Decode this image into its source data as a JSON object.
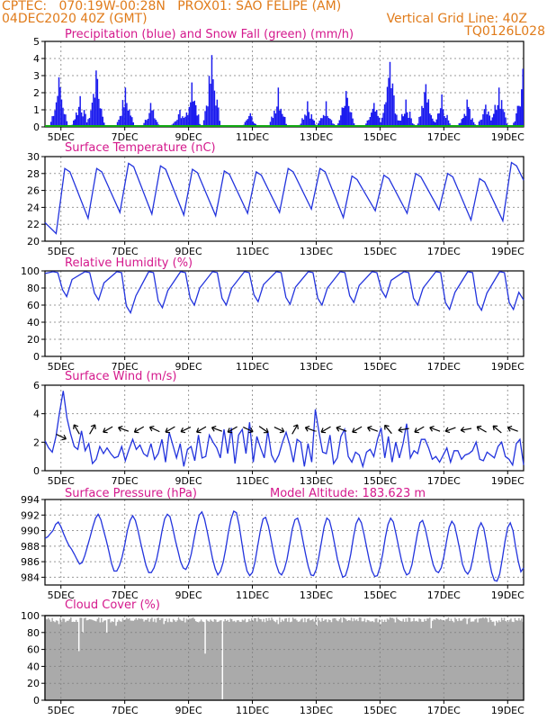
{
  "header": {
    "line1_left": "CPTEC:   070:19W-00:28N   PROX01: SAO FELIPE (AM)",
    "line2_left": "04DEC2020 40Z (GMT)",
    "line2_right": "Vertical Grid Line: 40Z",
    "line3_right": "TQ0126L028"
  },
  "colors": {
    "header": "#e07b1a",
    "title": "#d4188c",
    "precip": "#1a1aee",
    "snow": "#11aa11",
    "line": "#2233dd",
    "cloud": "#aaaaaa",
    "grid": "#999999",
    "arrow": "#000000"
  },
  "x_tick_labels": [
    "5DEC",
    "7DEC",
    "9DEC",
    "11DEC",
    "13DEC",
    "15DEC",
    "17DEC",
    "19DEC"
  ],
  "chart_data": [
    {
      "id": "precip",
      "type": "bar",
      "title": "Precipitation (blue) and Snow Fall (green) (mm/h)",
      "ylim": [
        0,
        5
      ],
      "yticks": [
        0,
        1,
        2,
        3,
        4,
        5
      ],
      "grid": true,
      "series": [
        {
          "name": "Precipitation",
          "color": "blue"
        },
        {
          "name": "Snow Fall",
          "color": "green"
        }
      ],
      "peaks": [
        {
          "day": 0.4,
          "value": 2.9
        },
        {
          "day": 1.1,
          "value": 1.8
        },
        {
          "day": 1.6,
          "value": 3.3
        },
        {
          "day": 2.5,
          "value": 2.3
        },
        {
          "day": 3.3,
          "value": 1.4
        },
        {
          "day": 4.2,
          "value": 1.0
        },
        {
          "day": 4.6,
          "value": 2.6
        },
        {
          "day": 5.2,
          "value": 4.2
        },
        {
          "day": 6.4,
          "value": 0.8
        },
        {
          "day": 7.3,
          "value": 2.3
        },
        {
          "day": 8.2,
          "value": 1.5
        },
        {
          "day": 8.8,
          "value": 1.5
        },
        {
          "day": 9.4,
          "value": 2.1
        },
        {
          "day": 10.3,
          "value": 1.4
        },
        {
          "day": 10.8,
          "value": 3.8
        },
        {
          "day": 11.3,
          "value": 1.6
        },
        {
          "day": 11.9,
          "value": 2.5
        },
        {
          "day": 12.4,
          "value": 1.9
        },
        {
          "day": 13.2,
          "value": 1.6
        },
        {
          "day": 13.8,
          "value": 1.3
        },
        {
          "day": 14.2,
          "value": 2.3
        },
        {
          "day": 14.9,
          "value": 2.2
        },
        {
          "day": 15.3,
          "value": 1.2
        },
        {
          "day": 16.2,
          "value": 0.8
        },
        {
          "day": 17.0,
          "value": 0.9
        }
      ]
    },
    {
      "id": "temp",
      "type": "line",
      "title": "Surface Temperature (nC)",
      "ylim": [
        20,
        30
      ],
      "yticks": [
        20,
        22,
        24,
        26,
        28,
        30
      ],
      "grid": true,
      "daily_max": [
        28.6,
        28.6,
        29.2,
        28.9,
        28.5,
        28.3,
        28.2,
        28.6,
        28.6,
        27.7,
        27.8,
        28.0,
        28.0,
        27.4,
        29.3
      ],
      "daily_min": [
        22.7,
        23.4,
        23.2,
        23.1,
        23.0,
        23.3,
        23.4,
        23.8,
        22.8,
        23.6,
        23.3,
        23.7,
        22.5,
        22.4,
        22.4
      ],
      "start": 22.2,
      "first_min": 20.9
    },
    {
      "id": "rh",
      "type": "line",
      "title": "Relative Humidity (%)",
      "ylim": [
        0,
        100
      ],
      "yticks": [
        0,
        20,
        40,
        60,
        80,
        100
      ],
      "grid": true,
      "daily_min": [
        70,
        66,
        51,
        57,
        60,
        60,
        64,
        61,
        60,
        63,
        69,
        60,
        55,
        54,
        55
      ],
      "end": 66
    },
    {
      "id": "wind",
      "type": "line",
      "title": "Surface Wind (m/s)",
      "ylim": [
        0,
        6
      ],
      "yticks": [
        0,
        2,
        4,
        6
      ],
      "grid": true,
      "values": [
        2.1,
        1.6,
        1.3,
        2.4,
        4.1,
        5.6,
        3.7,
        2.6,
        1.7,
        1.5,
        2.8,
        1.4,
        1.9,
        0.5,
        0.8,
        1.7,
        1.2,
        1.6,
        1.2,
        0.9,
        1.0,
        1.7,
        0.7,
        1.5,
        2.2,
        1.5,
        1.8,
        1.2,
        1.0,
        1.9,
        0.8,
        1.2,
        2.2,
        0.6,
        2.7,
        1.8,
        0.9,
        1.9,
        0.3,
        1.5,
        1.7,
        0.7,
        2.5,
        0.9,
        1.0,
        2.5,
        2.0,
        1.6,
        0.9,
        2.9,
        1.2,
        3.0,
        0.5,
        2.5,
        2.9,
        1.2,
        3.4,
        0.6,
        2.4,
        1.6,
        0.9,
        2.8,
        1.1,
        0.6,
        1.1,
        2.0,
        2.7,
        1.8,
        0.6,
        2.2,
        2.0,
        0.3,
        1.9,
        0.6,
        4.3,
        2.7,
        1.3,
        1.2,
        2.5,
        0.5,
        0.9,
        2.4,
        2.9,
        1.0,
        0.6,
        1.3,
        1.1,
        0.3,
        1.3,
        1.5,
        1.0,
        2.2,
        3.0,
        0.9,
        2.4,
        0.6,
        2.0,
        0.9,
        1.9,
        3.3,
        0.9,
        1.4,
        1.2,
        2.2,
        2.2,
        1.6,
        0.8,
        1.0,
        0.6,
        1.1,
        1.6,
        0.6,
        1.4,
        1.4,
        0.8,
        1.1,
        1.2,
        1.4,
        2.0,
        0.8,
        0.7,
        1.3,
        1.1,
        0.9,
        1.7,
        2.0,
        1.0,
        0.8,
        0.4,
        1.9,
        2.2,
        0.4
      ],
      "arrow_angles": [
        25,
        240,
        300,
        150,
        200,
        150,
        205,
        150,
        155,
        150,
        200,
        150,
        25,
        35,
        25,
        300,
        200,
        150,
        200,
        150,
        200,
        230,
        170,
        150,
        200,
        160,
        170,
        210,
        220,
        200
      ]
    },
    {
      "id": "pressure",
      "type": "line",
      "title": "Surface Pressure (hPa)",
      "subtitle": "Model Altitude: 183.623 m",
      "ylim": [
        983,
        994
      ],
      "yticks": [
        984,
        986,
        988,
        990,
        992,
        994
      ],
      "grid": true,
      "values": [
        989.0,
        989.2,
        989.6,
        990.0,
        990.8,
        991.1,
        990.5,
        989.6,
        988.8,
        988.1,
        987.6,
        987.0,
        986.3,
        985.7,
        985.9,
        986.8,
        988.0,
        989.2,
        990.5,
        991.6,
        992.1,
        991.4,
        990.1,
        988.8,
        987.4,
        985.8,
        984.8,
        984.8,
        985.5,
        986.6,
        988.2,
        990.0,
        991.3,
        991.9,
        991.3,
        990.0,
        988.4,
        986.9,
        985.5,
        984.6,
        984.6,
        985.2,
        986.3,
        988.0,
        989.9,
        991.5,
        992.1,
        991.8,
        990.4,
        988.8,
        987.4,
        986.0,
        985.2,
        985.0,
        985.7,
        987.0,
        988.8,
        990.6,
        992.0,
        992.4,
        991.5,
        989.9,
        988.2,
        986.4,
        985.1,
        984.3,
        984.8,
        985.9,
        987.7,
        989.8,
        991.5,
        992.5,
        992.3,
        990.7,
        988.5,
        986.3,
        984.8,
        984.2,
        984.6,
        986.0,
        988.0,
        990.0,
        991.5,
        991.7,
        990.6,
        988.9,
        987.1,
        985.6,
        984.6,
        984.3,
        985.0,
        986.3,
        988.2,
        990.2,
        991.4,
        991.6,
        990.5,
        988.7,
        987.0,
        985.4,
        984.3,
        984.2,
        985.0,
        986.6,
        988.6,
        990.5,
        991.6,
        991.3,
        989.9,
        988.1,
        986.3,
        985.0,
        984.0,
        984.2,
        985.3,
        987.0,
        989.1,
        990.9,
        991.6,
        991.0,
        989.5,
        987.8,
        986.1,
        984.8,
        984.1,
        984.2,
        985.3,
        987.0,
        989.1,
        990.8,
        991.6,
        991.1,
        989.6,
        987.9,
        986.3,
        985.0,
        984.3,
        984.5,
        985.6,
        987.5,
        989.5,
        991.0,
        991.3,
        990.3,
        988.7,
        987.0,
        985.6,
        984.8,
        984.6,
        985.2,
        986.6,
        988.6,
        990.4,
        991.2,
        990.7,
        989.2,
        987.5,
        985.7,
        984.8,
        984.4,
        985.0,
        986.5,
        988.5,
        990.3,
        991.0,
        990.3,
        988.5,
        986.3,
        984.6,
        983.6,
        983.5,
        984.4,
        986.4,
        988.6,
        990.4,
        991.0,
        990.0,
        987.9,
        986.0,
        984.7,
        985.2
      ]
    },
    {
      "id": "cloud",
      "type": "area",
      "title": "Cloud Cover (%)",
      "ylim": [
        0,
        100
      ],
      "yticks": [
        0,
        20,
        40,
        60,
        80,
        100
      ],
      "grid": true,
      "baseline": 95,
      "dips": [
        {
          "day": 0.4,
          "value": 90
        },
        {
          "day": 1.05,
          "value": 58
        },
        {
          "day": 1.15,
          "value": 80
        },
        {
          "day": 1.9,
          "value": 80
        },
        {
          "day": 2.2,
          "value": 88
        },
        {
          "day": 3.7,
          "value": 90
        },
        {
          "day": 5.0,
          "value": 55
        },
        {
          "day": 5.55,
          "value": 0
        },
        {
          "day": 7.3,
          "value": 90
        },
        {
          "day": 8.5,
          "value": 88
        },
        {
          "day": 10.5,
          "value": 90
        },
        {
          "day": 12.1,
          "value": 85
        },
        {
          "day": 13.2,
          "value": 90
        },
        {
          "day": 14.1,
          "value": 88
        },
        {
          "day": 15.1,
          "value": 86
        }
      ]
    }
  ]
}
